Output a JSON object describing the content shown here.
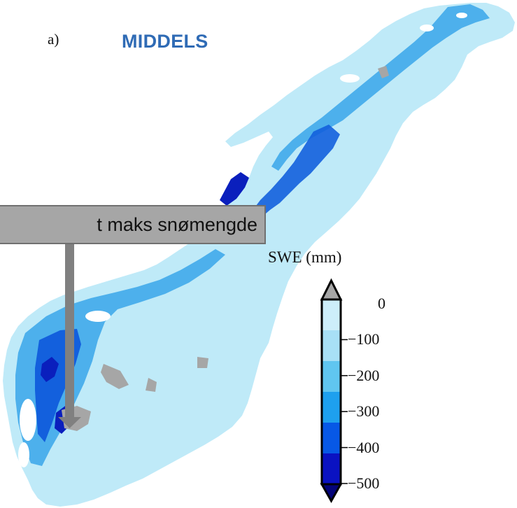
{
  "panel": {
    "label": "a)",
    "title": "MIDDELS"
  },
  "callout": {
    "text": "t maks snømengde"
  },
  "legend": {
    "title": "SWE (mm)",
    "ticks": [
      "0",
      "−100",
      "−200",
      "−300",
      "−400",
      "−500"
    ],
    "bands": [
      "#cdeefa",
      "#a8e0f6",
      "#60c6f0",
      "#1ea0ee",
      "#0758e6",
      "#0a12c2"
    ],
    "upper_arrow_color": "#a6a6a6",
    "lower_arrow_color": "#04047a"
  },
  "map": {
    "land_color": "#bfeaf8",
    "lake_color": "#a6a6a6",
    "mountain_colors": [
      "#ffffff",
      "#9ed6f3",
      "#38a6ea",
      "#1360dd",
      "#0a1fbd"
    ]
  }
}
